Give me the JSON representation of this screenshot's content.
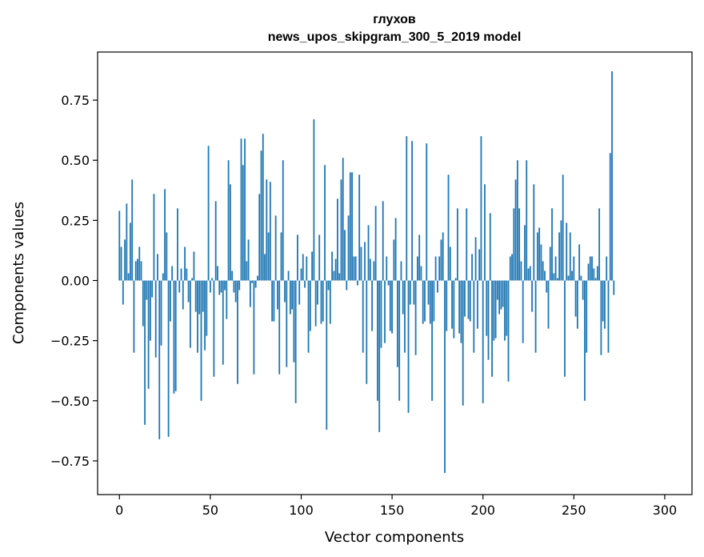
{
  "chart_data": {
    "type": "bar",
    "title": "глухов",
    "subtitle": "news_upos_skipgram_300_5_2019 model",
    "xlabel": "Vector components",
    "ylabel": "Components values",
    "xlim": [
      -12,
      315
    ],
    "ylim": [
      -0.89,
      0.95
    ],
    "xticks": [
      0,
      50,
      100,
      150,
      200,
      250,
      300
    ],
    "xtick_labels": [
      "0",
      "50",
      "100",
      "150",
      "200",
      "250",
      "300"
    ],
    "yticks": [
      -0.75,
      -0.5,
      -0.25,
      0.0,
      0.25,
      0.5,
      0.75
    ],
    "ytick_labels": [
      "−0.75",
      "−0.50",
      "−0.25",
      "0.00",
      "0.25",
      "0.50",
      "0.75"
    ],
    "bar_color": "#1f77b4",
    "values": [
      0.29,
      0.14,
      -0.1,
      0.17,
      0.32,
      0.03,
      0.24,
      0.42,
      -0.3,
      0.08,
      0.09,
      0.14,
      0.08,
      -0.19,
      -0.6,
      -0.08,
      -0.45,
      -0.25,
      -0.07,
      0.36,
      -0.32,
      0.11,
      -0.66,
      -0.27,
      0.03,
      0.38,
      0.2,
      -0.65,
      -0.17,
      0.06,
      -0.47,
      -0.46,
      0.3,
      -0.05,
      0.05,
      -0.12,
      0.14,
      0.05,
      -0.09,
      -0.28,
      0.01,
      0.12,
      -0.13,
      -0.3,
      -0.14,
      -0.5,
      -0.13,
      -0.29,
      -0.23,
      0.56,
      -0.05,
      0.01,
      -0.4,
      0.33,
      0.06,
      -0.06,
      -0.05,
      -0.35,
      -0.04,
      -0.16,
      0.5,
      0.4,
      0.04,
      -0.05,
      -0.09,
      -0.43,
      -0.04,
      0.59,
      0.48,
      0.59,
      0.08,
      0.17,
      -0.11,
      -0.01,
      -0.39,
      -0.03,
      0.02,
      0.36,
      0.54,
      0.61,
      0.11,
      0.42,
      0.2,
      0.41,
      -0.17,
      -0.17,
      0.27,
      -0.12,
      -0.39,
      0.2,
      0.5,
      -0.09,
      -0.36,
      0.04,
      -0.14,
      -0.12,
      -0.34,
      -0.51,
      0.19,
      -0.1,
      0.05,
      0.11,
      -0.03,
      0.1,
      -0.3,
      -0.21,
      0.12,
      0.67,
      -0.19,
      -0.1,
      0.19,
      -0.18,
      -0.17,
      0.48,
      -0.62,
      -0.04,
      -0.18,
      0.12,
      0.04,
      0.09,
      0.34,
      0.03,
      0.42,
      0.51,
      0.21,
      -0.04,
      0.27,
      0.45,
      0.45,
      0.1,
      0.1,
      -0.02,
      0.44,
      0.14,
      -0.3,
      0.16,
      -0.43,
      0.23,
      0.09,
      -0.21,
      0.08,
      0.31,
      -0.5,
      -0.63,
      -0.28,
      0.33,
      -0.26,
      0.1,
      -0.02,
      -0.21,
      -0.22,
      0.17,
      0.26,
      -0.36,
      -0.5,
      0.08,
      -0.14,
      -0.3,
      0.6,
      -0.55,
      -0.1,
      0.58,
      -0.1,
      -0.31,
      0.1,
      0.19,
      0.06,
      -0.18,
      -0.17,
      0.57,
      -0.1,
      -0.18,
      -0.5,
      -0.17,
      0.1,
      -0.05,
      0.1,
      0.17,
      0.2,
      -0.8,
      -0.21,
      0.44,
      0.14,
      -0.2,
      -0.24,
      0.01,
      0.3,
      -0.22,
      -0.26,
      -0.52,
      -0.15,
      0.3,
      -0.16,
      -0.17,
      0.11,
      -0.3,
      0.18,
      -0.2,
      0.13,
      0.6,
      -0.51,
      0.4,
      -0.23,
      -0.33,
      0.28,
      -0.4,
      -0.25,
      -0.24,
      -0.08,
      -0.14,
      -0.12,
      -0.11,
      -0.25,
      -0.23,
      -0.42,
      0.1,
      0.11,
      0.3,
      0.42,
      0.5,
      0.3,
      0.08,
      -0.26,
      0.23,
      0.5,
      0.05,
      0.06,
      -0.13,
      0.4,
      -0.3,
      0.2,
      0.22,
      0.15,
      0.08,
      0.04,
      -0.05,
      -0.2,
      0.14,
      0.3,
      0.03,
      0.1,
      0.01,
      0.2,
      0.25,
      0.44,
      -0.4,
      0.24,
      0.02,
      0.2,
      0.04,
      0.1,
      -0.15,
      -0.2,
      0.15,
      0.02,
      -0.08,
      -0.5,
      -0.3,
      0.07,
      0.1,
      0.1,
      0.05,
      0.01,
      0.06,
      0.3,
      -0.31,
      -0.17,
      -0.2,
      0.1,
      -0.3,
      0.53,
      0.87,
      -0.06
    ]
  }
}
